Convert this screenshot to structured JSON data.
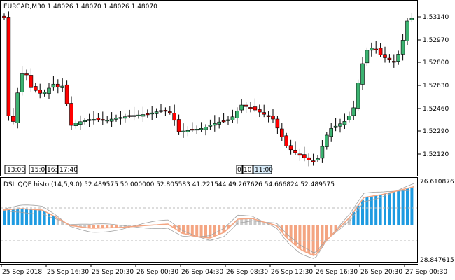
{
  "main": {
    "title": "EURCAD,M30  1.48026  1.48070  1.48026  1.48070",
    "yaxis_labels": [
      "1.53140",
      "1.52970",
      "1.52800",
      "1.52630",
      "1.52460",
      "1.52290",
      "1.52120"
    ],
    "time_markers": [
      "13:00",
      "15:00",
      "16:",
      "17:40",
      "0",
      "10:",
      "11:00"
    ]
  },
  "indicator": {
    "title": "DSL QQE histo (14,5,9.0) 52.489575 50.000000 52.805583 41.221544 49.267626 54.666824 52.489575",
    "ymax_label": "76.610876",
    "ymin_label": "28.847615"
  },
  "xaxis_labels": [
    "25 Sep 2018",
    "25 Sep 16:30",
    "25 Sep 20:30",
    "26 Sep 00:30",
    "26 Sep 04:30",
    "26 Sep 08:30",
    "26 Sep 12:30",
    "26 Sep 16:30",
    "26 Sep 20:30",
    "27 Sep 00:30"
  ],
  "colors": {
    "bull": "#3cb371",
    "bear": "#ff0000",
    "histo_up": "#1e9be1",
    "histo_down": "#f4a582",
    "histo_neutral": "#c8c8c8",
    "lines": "#a0a0a0"
  }
}
